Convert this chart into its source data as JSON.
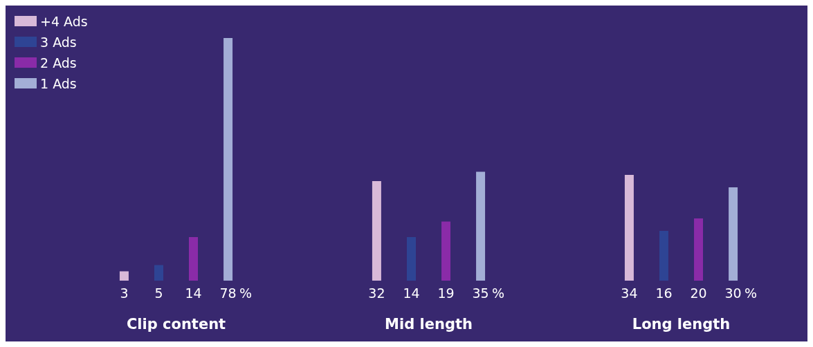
{
  "chart_data": {
    "type": "bar",
    "categories": [
      "Clip content",
      "Mid length",
      "Long length"
    ],
    "series": [
      {
        "name": "+4 Ads",
        "color": "#d8b9d8",
        "values": [
          3,
          32,
          34
        ]
      },
      {
        "name": "3 Ads",
        "color": "#2e4494",
        "values": [
          5,
          14,
          16
        ]
      },
      {
        "name": "2 Ads",
        "color": "#8a2ba8",
        "values": [
          14,
          19,
          20
        ]
      },
      {
        "name": "1 Ads",
        "color": "#a3aed6",
        "values": [
          78,
          35,
          30
        ]
      }
    ],
    "data_labels": true,
    "legend": "top left",
    "grid": false,
    "annotations": [
      "%",
      "%",
      "%"
    ]
  }
}
